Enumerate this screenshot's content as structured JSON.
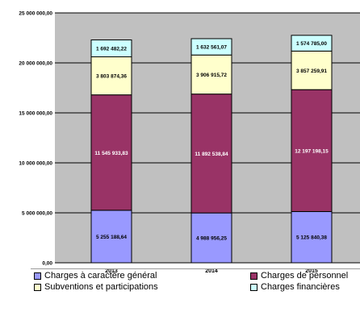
{
  "chart_data": {
    "type": "bar",
    "stacked": true,
    "categories": [
      "2013",
      "2014",
      "2015"
    ],
    "ylim": [
      0,
      25000000
    ],
    "yticks": [
      0,
      5000000,
      10000000,
      15000000,
      20000000,
      25000000
    ],
    "ytick_labels": [
      "0,00",
      "5 000 000,00",
      "10 000 000,00",
      "15 000 000,00",
      "20 000 000,00",
      "25 000 000,00"
    ],
    "grid": true,
    "legend_position": "bottom",
    "series": [
      {
        "name": "Charges à caractère général",
        "color": "#9999ff",
        "values": [
          5255188.64,
          4988956.25,
          5125840.38
        ],
        "labels": [
          "5 255 188,64",
          "4 988 956,25",
          "5 125 840,38"
        ]
      },
      {
        "name": "Charges de personnel",
        "color": "#993366",
        "values": [
          11545933.83,
          11892538.84,
          12197198.15
        ],
        "labels": [
          "11 545 933,83",
          "11 892 538,84",
          "12 197 198,15"
        ]
      },
      {
        "name": "Subventions et participations",
        "color": "#ffffcc",
        "values": [
          3803874.36,
          3906915.72,
          3857259.91
        ],
        "labels": [
          "3 803 874,36",
          "3 906 915,72",
          "3 857 259,91"
        ]
      },
      {
        "name": "Charges financières",
        "color": "#ccffff",
        "values": [
          1692482.22,
          1632561.07,
          1574785.0
        ],
        "labels": [
          "1 692 482,22",
          "1 632 561,07",
          "1 574 785,00"
        ]
      }
    ]
  },
  "colors": {
    "plot_background": "#c0c0c0",
    "gridline": "#000000"
  },
  "legend": {
    "items": [
      {
        "label": "Charges à caractère général",
        "color": "#9999ff"
      },
      {
        "label": "Charges de personnel",
        "color": "#993366"
      },
      {
        "label": "Subventions et participations",
        "color": "#ffffcc"
      },
      {
        "label": "Charges financières",
        "color": "#ccffff"
      }
    ]
  }
}
